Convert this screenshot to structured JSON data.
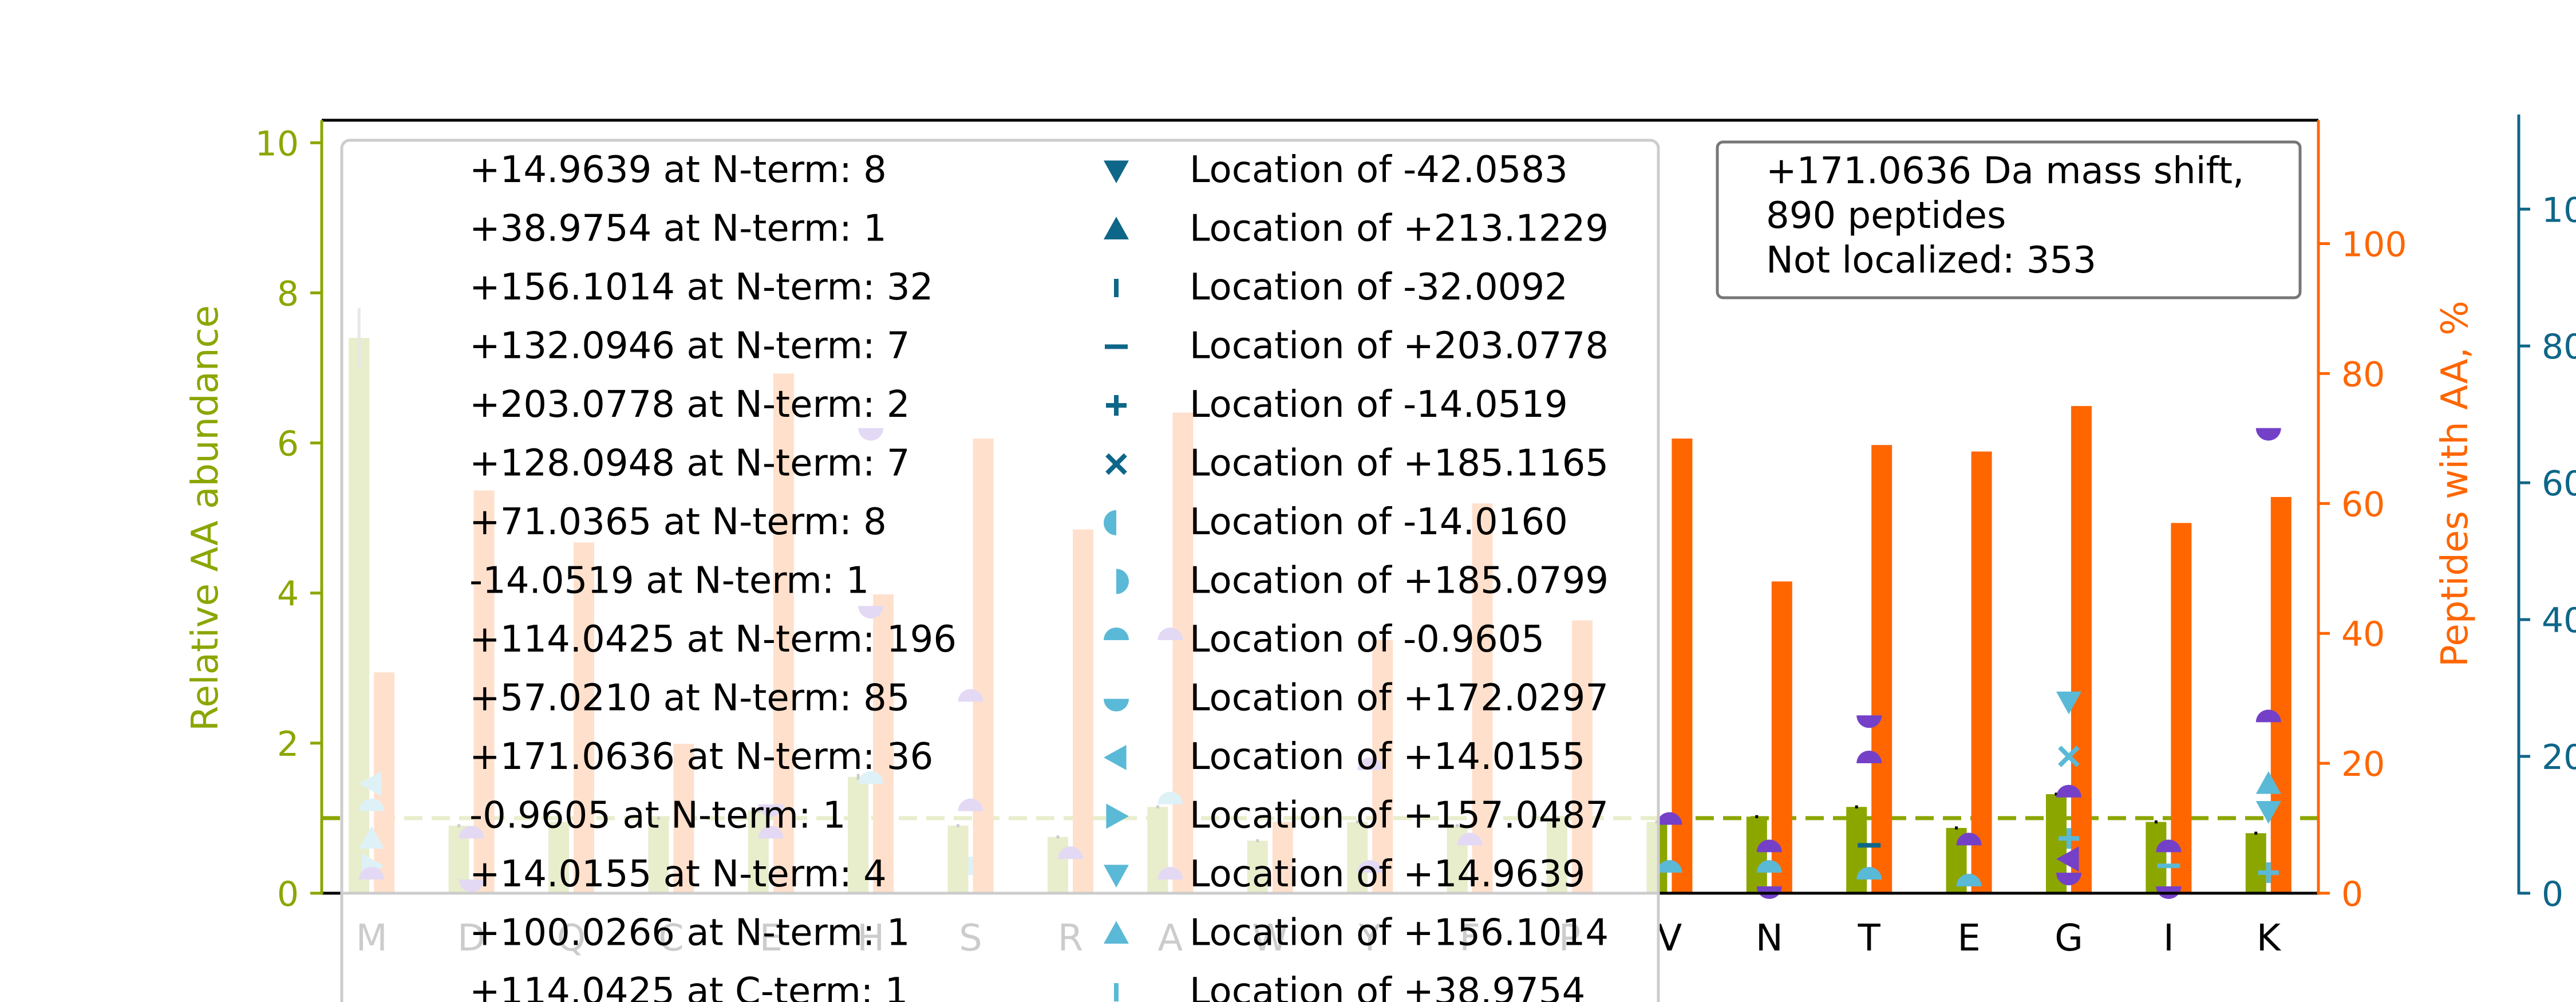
{
  "colors": {
    "green": "#8ca600",
    "orange": "#ff6600",
    "blue": "#0e6688",
    "light_blue": "#5ab9d6",
    "purple": "#7440c8",
    "black": "#000000",
    "legend_border": "#cccccc",
    "inset_border": "#777777"
  },
  "chart_data": {
    "type": "bar",
    "categories": [
      "M",
      "D",
      "Q",
      "C",
      "E",
      "H",
      "S",
      "R",
      "A",
      "W",
      "Y",
      "F",
      "P",
      "V",
      "N",
      "T",
      "E",
      "G",
      "I",
      "K"
    ],
    "ylabel": "Relative AA abundance",
    "ylabel_right": "Peptides with AA, %",
    "ylim": [
      0,
      10.3
    ],
    "ylim_right": [
      0,
      119
    ],
    "ylim_far_right": [
      0,
      113
    ],
    "yticks": [
      "0",
      "2",
      "4",
      "6",
      "8",
      "10"
    ],
    "yticks_right": [
      "0",
      "20",
      "40",
      "60",
      "80",
      "100"
    ],
    "yticks_far_right": [
      "0",
      "20",
      "40",
      "60",
      "80",
      "100"
    ],
    "far_right_tick_labels_visible": [
      "0",
      "20",
      "40",
      "60",
      "80",
      "10"
    ],
    "reference_line": 1.0,
    "series": [
      {
        "name": "Relative AA abundance",
        "axis": "left",
        "values": [
          7.4,
          0.9,
          0.95,
          1.0,
          1.1,
          1.55,
          0.9,
          0.75,
          1.15,
          0.7,
          0.95,
          0.9,
          1.0,
          0.95,
          1.02,
          1.15,
          0.87,
          1.32,
          0.95,
          0.8
        ],
        "errors": [
          0.4,
          0.02,
          0.02,
          0.02,
          0.02,
          0.04,
          0.02,
          0.02,
          0.02,
          0.02,
          0.02,
          0.02,
          0.02,
          0.02,
          0.02,
          0.02,
          0.02,
          0.02,
          0.02,
          0.02
        ]
      },
      {
        "name": "Peptides with AA, %",
        "axis": "right",
        "values": [
          34,
          62,
          54,
          23,
          80,
          46,
          70,
          56,
          74,
          11,
          39,
          60,
          42,
          70,
          48,
          69,
          68,
          75,
          57,
          61
        ]
      }
    ],
    "markers": [
      {
        "cat": 0,
        "value": 4,
        "shape": "tri-right",
        "color": "#5ab9d6"
      },
      {
        "cat": 0,
        "value": 8,
        "shape": "tri-up",
        "color": "#5ab9d6"
      },
      {
        "cat": 0,
        "value": 16,
        "shape": "tri-left",
        "color": "#5ab9d6"
      },
      {
        "cat": 0,
        "value": 2,
        "shape": "semi-top",
        "color": "#7440c8"
      },
      {
        "cat": 0,
        "value": 12,
        "shape": "semi-top",
        "color": "#5ab9d6"
      },
      {
        "cat": 1,
        "value": 8,
        "shape": "semi-top",
        "color": "#7440c8"
      },
      {
        "cat": 1,
        "value": 2,
        "shape": "semi-bottom",
        "color": "#7440c8"
      },
      {
        "cat": 4,
        "value": 8,
        "shape": "semi-top",
        "color": "#7440c8"
      },
      {
        "cat": 4,
        "value": 13,
        "shape": "semi-bottom",
        "color": "#7440c8"
      },
      {
        "cat": 5,
        "value": 68,
        "shape": "semi-bottom",
        "color": "#7440c8"
      },
      {
        "cat": 5,
        "value": 42,
        "shape": "semi-bottom",
        "color": "#7440c8"
      },
      {
        "cat": 5,
        "value": 16,
        "shape": "semi-top",
        "color": "#5ab9d6"
      },
      {
        "cat": 6,
        "value": 28,
        "shape": "semi-top",
        "color": "#7440c8"
      },
      {
        "cat": 6,
        "value": 12,
        "shape": "semi-top",
        "color": "#7440c8"
      },
      {
        "cat": 6,
        "value": 4,
        "shape": "vbar",
        "color": "#5ab9d6"
      },
      {
        "cat": 7,
        "value": 5,
        "shape": "semi-top",
        "color": "#7440c8"
      },
      {
        "cat": 8,
        "value": 37,
        "shape": "semi-top",
        "color": "#7440c8"
      },
      {
        "cat": 8,
        "value": 13,
        "shape": "semi-top",
        "color": "#5ab9d6"
      },
      {
        "cat": 8,
        "value": 2,
        "shape": "semi-top",
        "color": "#7440c8"
      },
      {
        "cat": 10,
        "value": 18,
        "shape": "semi-top",
        "color": "#7440c8"
      },
      {
        "cat": 10,
        "value": 3,
        "shape": "semi-top",
        "color": "#7440c8"
      },
      {
        "cat": 11,
        "value": 7,
        "shape": "semi-top",
        "color": "#7440c8"
      },
      {
        "cat": 13,
        "value": 10,
        "shape": "semi-top",
        "color": "#7440c8"
      },
      {
        "cat": 13,
        "value": 3,
        "shape": "semi-top",
        "color": "#5ab9d6"
      },
      {
        "cat": 14,
        "value": 6,
        "shape": "semi-top",
        "color": "#7440c8"
      },
      {
        "cat": 14,
        "value": 3,
        "shape": "semi-top",
        "color": "#5ab9d6"
      },
      {
        "cat": 14,
        "value": 1,
        "shape": "semi-bottom",
        "color": "#7440c8"
      },
      {
        "cat": 15,
        "value": 26,
        "shape": "semi-bottom",
        "color": "#7440c8"
      },
      {
        "cat": 15,
        "value": 19,
        "shape": "semi-top",
        "color": "#7440c8"
      },
      {
        "cat": 15,
        "value": 7,
        "shape": "dash",
        "color": "#0e6688"
      },
      {
        "cat": 15,
        "value": 2,
        "shape": "semi-top",
        "color": "#5ab9d6"
      },
      {
        "cat": 16,
        "value": 90,
        "shape": "semi-top",
        "color": "#7440c8"
      },
      {
        "cat": 16,
        "value": 7,
        "shape": "semi-top",
        "color": "#7440c8"
      },
      {
        "cat": 16,
        "value": 1,
        "shape": "semi-top",
        "color": "#5ab9d6"
      },
      {
        "cat": 17,
        "value": 90,
        "shape": "semi-bottom",
        "color": "#7440c8"
      },
      {
        "cat": 17,
        "value": 28,
        "shape": "tri-down",
        "color": "#5ab9d6"
      },
      {
        "cat": 17,
        "value": 20,
        "shape": "cross",
        "color": "#5ab9d6"
      },
      {
        "cat": 17,
        "value": 14,
        "shape": "semi-top",
        "color": "#7440c8"
      },
      {
        "cat": 17,
        "value": 8,
        "shape": "plus",
        "color": "#5ab9d6"
      },
      {
        "cat": 17,
        "value": 5,
        "shape": "tri-left",
        "color": "#7440c8"
      },
      {
        "cat": 17,
        "value": 3,
        "shape": "semi-bottom",
        "color": "#7440c8"
      },
      {
        "cat": 18,
        "value": 6,
        "shape": "semi-top",
        "color": "#7440c8"
      },
      {
        "cat": 18,
        "value": 4,
        "shape": "dash",
        "color": "#5ab9d6"
      },
      {
        "cat": 18,
        "value": 1,
        "shape": "semi-bottom",
        "color": "#7440c8"
      },
      {
        "cat": 19,
        "value": 68,
        "shape": "semi-bottom",
        "color": "#7440c8"
      },
      {
        "cat": 19,
        "value": 25,
        "shape": "semi-top",
        "color": "#7440c8"
      },
      {
        "cat": 19,
        "value": 16,
        "shape": "tri-up",
        "color": "#5ab9d6"
      },
      {
        "cat": 19,
        "value": 12,
        "shape": "tri-down",
        "color": "#5ab9d6"
      },
      {
        "cat": 19,
        "value": 3,
        "shape": "plus",
        "color": "#5ab9d6"
      }
    ],
    "legend": {
      "column1": [
        "+14.9639 at N-term: 8",
        "+38.9754 at N-term: 1",
        "+156.1014 at N-term: 32",
        "+132.0946 at N-term: 7",
        "+203.0778 at N-term: 2",
        "+128.0948 at N-term: 7",
        "+71.0365 at N-term: 8",
        "-14.0519 at N-term: 1",
        "+114.0425 at N-term: 196",
        "+57.0210 at N-term: 85",
        "+171.0636 at N-term: 36",
        "-0.9605 at N-term: 1",
        "+14.0155 at N-term: 4",
        "+100.0266 at N-term: 1",
        "+114.0425 at C-term: 1"
      ],
      "column2": [
        {
          "label": "Location of -42.0583",
          "shape": "tri-down",
          "color": "#0e6688"
        },
        {
          "label": "Location of +213.1229",
          "shape": "tri-up",
          "color": "#0e6688"
        },
        {
          "label": "Location of -32.0092",
          "shape": "vbar",
          "color": "#0e6688"
        },
        {
          "label": "Location of +203.0778",
          "shape": "dash",
          "color": "#0e6688"
        },
        {
          "label": "Location of -14.0519",
          "shape": "plus",
          "color": "#0e6688"
        },
        {
          "label": "Location of +185.1165",
          "shape": "cross",
          "color": "#0e6688"
        },
        {
          "label": "Location of -14.0160",
          "shape": "semi-left",
          "color": "#5ab9d6"
        },
        {
          "label": "Location of +185.0799",
          "shape": "semi-right",
          "color": "#5ab9d6"
        },
        {
          "label": "Location of -0.9605",
          "shape": "semi-top",
          "color": "#5ab9d6"
        },
        {
          "label": "Location of +172.0297",
          "shape": "semi-bottom",
          "color": "#5ab9d6"
        },
        {
          "label": "Location of +14.0155",
          "shape": "tri-left",
          "color": "#5ab9d6"
        },
        {
          "label": "Location of +157.0487",
          "shape": "tri-right",
          "color": "#5ab9d6"
        },
        {
          "label": "Location of +14.9639",
          "shape": "tri-down",
          "color": "#5ab9d6"
        },
        {
          "label": "Location of +156.1014",
          "shape": "tri-up",
          "color": "#5ab9d6"
        },
        {
          "label": "Location of +38.9754",
          "shape": "vbar",
          "color": "#5ab9d6"
        }
      ]
    },
    "annotation_lines": [
      "+171.0636 Da mass shift,",
      "890 peptides",
      "Not localized: 353"
    ]
  }
}
